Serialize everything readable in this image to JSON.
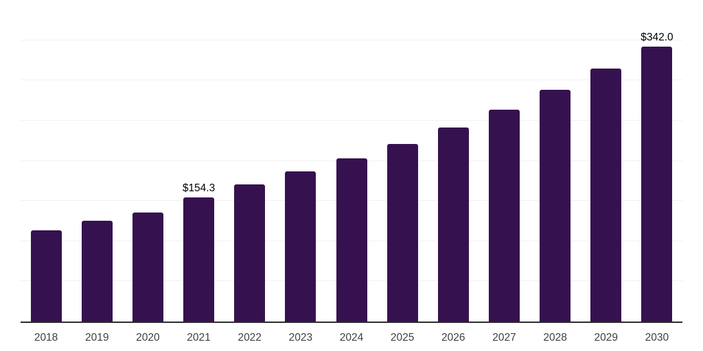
{
  "chart_data": {
    "type": "bar",
    "title": "",
    "xlabel": "",
    "ylabel": "",
    "categories": [
      "2018",
      "2019",
      "2020",
      "2021",
      "2022",
      "2023",
      "2024",
      "2025",
      "2026",
      "2027",
      "2028",
      "2029",
      "2030"
    ],
    "values": [
      113.7,
      125.0,
      135.5,
      154.3,
      170.5,
      186.8,
      203.0,
      221.0,
      241.4,
      263.5,
      288.3,
      314.7,
      342.0
    ],
    "value_labels": [
      "",
      "",
      "",
      "$154.3",
      "",
      "",
      "",
      "",
      "",
      "",
      "",
      "",
      "$342.0"
    ],
    "ylim": [
      0,
      400
    ],
    "gridline_interval": 50,
    "grid": true,
    "legend": false,
    "colors": {
      "bar": "#36114F",
      "axis_line": "#2b2b2b",
      "gridline": "#f1f1f1",
      "value_label": "#000000",
      "tick_label": "#3f3f3f",
      "background": "#ffffff"
    }
  }
}
